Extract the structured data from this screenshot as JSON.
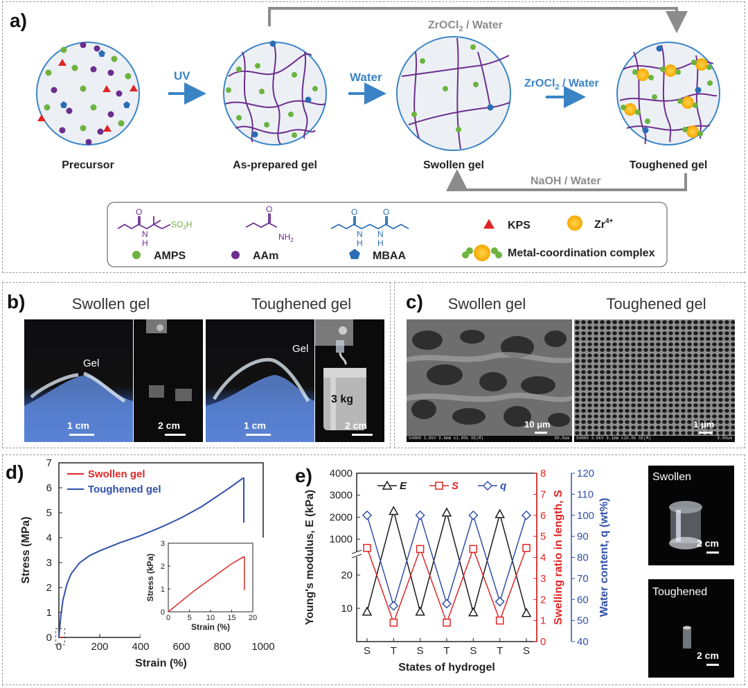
{
  "panel_a": {
    "label": "a)",
    "stages": [
      "Precursor",
      "As-prepared gel",
      "Swollen gel",
      "Toughened gel"
    ],
    "arrows": {
      "uv": "UV",
      "water": "Water",
      "zr_label": "ZrOCl",
      "zr_sub": "2",
      "zr_suffix": " / Water",
      "naoh": "NaOH / Water"
    },
    "legend": {
      "so3h": "SO",
      "so3h_sub": "3",
      "so3h_end": "H",
      "nh2": "NH",
      "nh2_sub": "2",
      "nh": "N",
      "h": "H",
      "o": "O",
      "amps": "AMPS",
      "aam": "AAm",
      "mbaa": "MBAA",
      "kps": "KPS",
      "zr": "Zr",
      "zr_sup": "4+",
      "complex": "Metal-coordination complex"
    },
    "colors": {
      "purple": "#6b2d8e",
      "green": "#6cb33f",
      "blue": "#2a6db5",
      "red": "#e02424",
      "gold": "#f7b500",
      "arrow_blue": "#3a84c6"
    }
  },
  "panel_b": {
    "label": "b)",
    "titles": [
      "Swollen gel",
      "Toughened gel"
    ],
    "gel": "Gel",
    "scale_1cm": "1 cm",
    "scale_2cm": "2 cm",
    "weight": "3 kg"
  },
  "panel_c": {
    "label": "c)",
    "titles": [
      "Swollen gel",
      "Toughened gel"
    ],
    "scale_left": "10 μm",
    "scale_right": "1 μm",
    "sem_left": "S4800 3.0kV 9.6mm x1.00k SE(M)",
    "sem_left_r": "50.0um",
    "sem_right": "S4800 3.0kV 9.1mm x10.0k SE(M)",
    "sem_right_r": "5.00um"
  },
  "panel_d": {
    "label": "d)",
    "legend": [
      "Swollen gel",
      "Toughened gel"
    ],
    "inset_xlabel": "Strain (%)",
    "inset_ylabel": "Stress (kPa)"
  },
  "panel_e": {
    "label": "e)",
    "photo_labels": [
      "Swollen",
      "Toughened"
    ],
    "scale": "2 cm"
  },
  "chart_data": [
    {
      "type": "line",
      "title": "",
      "xlabel": "Strain (%)",
      "ylabel": "Stress (MPa)",
      "xlim": [
        0,
        1000
      ],
      "ylim": [
        0,
        7
      ],
      "xticks": [
        0,
        200,
        400,
        600,
        800,
        1000
      ],
      "yticks": [
        0,
        1,
        2,
        3,
        4,
        5,
        6,
        7
      ],
      "series": [
        {
          "name": "Swollen gel",
          "color": "#e02424",
          "x": [
            0,
            18
          ],
          "y": [
            0,
            0.0024
          ]
        },
        {
          "name": "Toughened gel",
          "color": "#2f4fa8",
          "x": [
            0,
            10,
            20,
            40,
            60,
            100,
            150,
            200,
            300,
            400,
            500,
            600,
            700,
            800,
            850,
            900,
            905,
            905
          ],
          "y": [
            0,
            0.9,
            1.5,
            2.15,
            2.55,
            2.98,
            3.28,
            3.47,
            3.8,
            4.08,
            4.42,
            4.8,
            5.25,
            5.8,
            6.08,
            6.38,
            6.38,
            4.6
          ]
        }
      ],
      "inset": {
        "xlabel": "Strain (%)",
        "ylabel": "Stress (kPa)",
        "xlim": [
          0,
          20
        ],
        "ylim": [
          0,
          3
        ],
        "xticks": [
          0,
          5,
          10,
          15,
          20
        ],
        "yticks": [
          0,
          1,
          2,
          3
        ],
        "x": [
          0,
          3,
          6,
          9,
          12,
          15,
          17.8,
          18,
          18
        ],
        "y": [
          0,
          0.45,
          0.9,
          1.3,
          1.7,
          2.1,
          2.4,
          2.4,
          0.95
        ]
      }
    },
    {
      "type": "line",
      "title": "",
      "xlabel": "States of hydrogel",
      "categories": [
        "S",
        "T",
        "S",
        "T",
        "S",
        "T",
        "S"
      ],
      "ylabel_left": "Young's modulus, E (kPa)",
      "ylabel_right1": "Swelling ratio in length, S",
      "ylabel_right2": "Water content, q (wt%)",
      "left_axis_upper": {
        "ticks": [
          1000,
          2000,
          3000,
          4000
        ]
      },
      "left_axis_lower": {
        "ticks": [
          10,
          20
        ]
      },
      "right1": {
        "ylim": [
          0,
          8
        ],
        "ticks": [
          0,
          1,
          2,
          3,
          4,
          5,
          6,
          7,
          8
        ]
      },
      "right2": {
        "ylim": [
          40,
          120
        ],
        "ticks": [
          40,
          50,
          60,
          70,
          80,
          90,
          100,
          110,
          120
        ]
      },
      "legend": [
        "E",
        "S",
        "q"
      ],
      "series": [
        {
          "name": "E",
          "color": "#1a1a1a",
          "marker": "triangle",
          "values": [
            9,
            2280,
            9,
            2210,
            8.8,
            2140,
            8.6
          ]
        },
        {
          "name": "S",
          "color": "#e02424",
          "marker": "square",
          "values": [
            4.45,
            0.9,
            4.4,
            0.9,
            4.4,
            1.0,
            4.45
          ]
        },
        {
          "name": "q",
          "color": "#2f4fa8",
          "marker": "diamond",
          "values": [
            100,
            57,
            100,
            58,
            100,
            59,
            100
          ]
        }
      ]
    }
  ]
}
